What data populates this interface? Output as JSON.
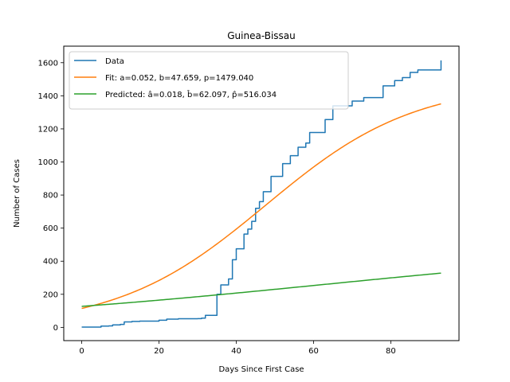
{
  "chart_data": {
    "type": "line",
    "title": "Guinea-Bissau",
    "xlabel": "Days Since First Case",
    "ylabel": "Number of Cases",
    "xlim": [
      -4.65,
      97.65
    ],
    "ylim": [
      -80,
      1700
    ],
    "xticks": [
      0,
      20,
      40,
      60,
      80
    ],
    "yticks": [
      0,
      200,
      400,
      600,
      800,
      1000,
      1200,
      1400,
      1600
    ],
    "grid": false,
    "legend_position": "top-left",
    "series": [
      {
        "name": "Data",
        "color": "#1f77b4",
        "style": "step",
        "points": [
          [
            0,
            2
          ],
          [
            4,
            2
          ],
          [
            5,
            8
          ],
          [
            7,
            9
          ],
          [
            8,
            15
          ],
          [
            10,
            18
          ],
          [
            11,
            33
          ],
          [
            13,
            36
          ],
          [
            15,
            38
          ],
          [
            18,
            38
          ],
          [
            20,
            43
          ],
          [
            22,
            50
          ],
          [
            25,
            52
          ],
          [
            30,
            53
          ],
          [
            31,
            56
          ],
          [
            32,
            73
          ],
          [
            34,
            73
          ],
          [
            35,
            200
          ],
          [
            36,
            257
          ],
          [
            37,
            257
          ],
          [
            38,
            293
          ],
          [
            39,
            409
          ],
          [
            40,
            475
          ],
          [
            41,
            475
          ],
          [
            42,
            564
          ],
          [
            43,
            594
          ],
          [
            44,
            641
          ],
          [
            45,
            720
          ],
          [
            46,
            760
          ],
          [
            47,
            820
          ],
          [
            48,
            820
          ],
          [
            49,
            913
          ],
          [
            50,
            913
          ],
          [
            51,
            913
          ],
          [
            52,
            990
          ],
          [
            53,
            990
          ],
          [
            54,
            1038
          ],
          [
            55,
            1038
          ],
          [
            56,
            1089
          ],
          [
            57,
            1089
          ],
          [
            58,
            1114
          ],
          [
            59,
            1178
          ],
          [
            60,
            1178
          ],
          [
            61,
            1178
          ],
          [
            62,
            1178
          ],
          [
            63,
            1256
          ],
          [
            64,
            1256
          ],
          [
            65,
            1339
          ],
          [
            66,
            1339
          ],
          [
            68,
            1339
          ],
          [
            69,
            1339
          ],
          [
            70,
            1368
          ],
          [
            71,
            1368
          ],
          [
            72,
            1368
          ],
          [
            73,
            1389
          ],
          [
            74,
            1389
          ],
          [
            75,
            1389
          ],
          [
            76,
            1389
          ],
          [
            77,
            1389
          ],
          [
            78,
            1460
          ],
          [
            79,
            1460
          ],
          [
            80,
            1460
          ],
          [
            81,
            1492
          ],
          [
            82,
            1492
          ],
          [
            83,
            1510
          ],
          [
            84,
            1510
          ],
          [
            85,
            1541
          ],
          [
            86,
            1541
          ],
          [
            87,
            1556
          ],
          [
            88,
            1556
          ],
          [
            89,
            1556
          ],
          [
            90,
            1556
          ],
          [
            91,
            1556
          ],
          [
            92,
            1556
          ],
          [
            93,
            1614
          ]
        ]
      },
      {
        "name": "Fit: a=0.052, b=47.659, p=1479.040",
        "color": "#ff7f0e",
        "style": "logistic",
        "a": 0.052,
        "b": 47.659,
        "p": 1479.04,
        "x_range": [
          0,
          93
        ]
      },
      {
        "name": "Predicted: â=0.018, b̂=62.097, p̂=516.034",
        "color": "#2ca02c",
        "style": "logistic",
        "a": 0.018,
        "b": 62.097,
        "p": 516.034,
        "x_range": [
          0,
          93
        ]
      }
    ]
  }
}
